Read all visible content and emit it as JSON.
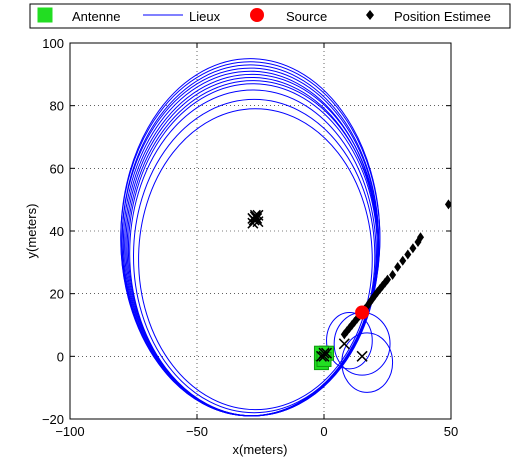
{
  "chart_data": {
    "type": "scatter",
    "title": "",
    "xlabel": "x(meters)",
    "ylabel": "y(meters)",
    "xlim": [
      -100,
      50
    ],
    "ylim": [
      -20,
      100
    ],
    "xticks": [
      -100,
      -50,
      0,
      50
    ],
    "yticks": [
      -20,
      0,
      20,
      40,
      60,
      80,
      100
    ],
    "xtick_labels": [
      "−100",
      "−50",
      "0",
      "50"
    ],
    "ytick_labels": [
      "−20",
      "0",
      "20",
      "40",
      "60",
      "80",
      "100"
    ],
    "grid": true,
    "grid_style": "dotted",
    "legend_position": "top-outside",
    "legend": [
      {
        "name": "Antenne",
        "marker": "square",
        "color": "#22dd22"
      },
      {
        "name": "Lieux",
        "marker": "line",
        "color": "#0000ff"
      },
      {
        "name": "Source",
        "marker": "circle",
        "color": "#ff0000"
      },
      {
        "name": "Position Estimee",
        "marker": "diamond",
        "color": "#000000"
      }
    ],
    "series": [
      {
        "name": "Antenne",
        "marker": "square",
        "color": "#22dd22",
        "points": [
          [
            0,
            0
          ],
          [
            -1,
            -2
          ],
          [
            1,
            1
          ],
          [
            -1,
            1
          ],
          [
            0,
            -1
          ]
        ]
      },
      {
        "name": "Lieux",
        "marker": "line",
        "color": "#0000ff",
        "large_loops": [
          {
            "cx": -29,
            "cy": 38,
            "rx": 51,
            "ry": 57
          },
          {
            "cx": -29,
            "cy": 37.5,
            "rx": 51,
            "ry": 56.5
          },
          {
            "cx": -29,
            "cy": 37,
            "rx": 50.5,
            "ry": 56
          },
          {
            "cx": -29,
            "cy": 36.5,
            "rx": 50.5,
            "ry": 55.5
          },
          {
            "cx": -29,
            "cy": 36,
            "rx": 50,
            "ry": 55
          },
          {
            "cx": -28.5,
            "cy": 35.5,
            "rx": 50,
            "ry": 54.5
          },
          {
            "cx": -28.5,
            "cy": 35,
            "rx": 49.5,
            "ry": 54
          },
          {
            "cx": -28,
            "cy": 34.5,
            "rx": 49.5,
            "ry": 53.5
          },
          {
            "cx": -28,
            "cy": 34,
            "rx": 49,
            "ry": 53
          },
          {
            "cx": -28,
            "cy": 33,
            "rx": 48.5,
            "ry": 52
          },
          {
            "cx": -27.5,
            "cy": 32,
            "rx": 47.5,
            "ry": 50
          },
          {
            "cx": -27,
            "cy": 31,
            "rx": 46,
            "ry": 48
          }
        ],
        "small_loops": [
          {
            "cx": 10,
            "cy": 5,
            "rx": 9,
            "ry": 9
          },
          {
            "cx": 15,
            "cy": 4,
            "rx": 11,
            "ry": 10
          },
          {
            "cx": 17,
            "cy": -2,
            "rx": 10,
            "ry": 9.5
          }
        ]
      },
      {
        "name": "Source",
        "marker": "circle",
        "color": "#ff0000",
        "points": [
          [
            15,
            14
          ]
        ]
      },
      {
        "name": "Position Estimee",
        "marker": "diamond",
        "color": "#000000",
        "points": [
          [
            15,
            14
          ],
          [
            16,
            15
          ],
          [
            17,
            16
          ],
          [
            18,
            17.2
          ],
          [
            19,
            18.3
          ],
          [
            20,
            19.4
          ],
          [
            21,
            20.5
          ],
          [
            22,
            21.5
          ],
          [
            23,
            22.5
          ],
          [
            24,
            23.5
          ],
          [
            25,
            24.5
          ],
          [
            27,
            26
          ],
          [
            29,
            28.5
          ],
          [
            31,
            30.5
          ],
          [
            33,
            32.5
          ],
          [
            35,
            34.5
          ],
          [
            37,
            36.5
          ],
          [
            38,
            38
          ],
          [
            49,
            48.5
          ],
          [
            14,
            13
          ],
          [
            13,
            12
          ],
          [
            12,
            11
          ],
          [
            11,
            10
          ],
          [
            10,
            9
          ],
          [
            9,
            8
          ],
          [
            8,
            7
          ]
        ]
      },
      {
        "name": "crosses",
        "marker": "x",
        "color": "#000000",
        "points": [
          [
            -27,
            45
          ],
          [
            -26.5,
            44
          ],
          [
            -27.5,
            43.5
          ],
          [
            -26,
            43
          ],
          [
            -28,
            42.5
          ],
          [
            -27,
            44.5
          ],
          [
            -26,
            45
          ],
          [
            -28,
            44
          ],
          [
            0,
            0
          ],
          [
            1,
            1
          ],
          [
            -1,
            0
          ],
          [
            0,
            1
          ],
          [
            8,
            4
          ],
          [
            15,
            0
          ]
        ]
      }
    ]
  }
}
